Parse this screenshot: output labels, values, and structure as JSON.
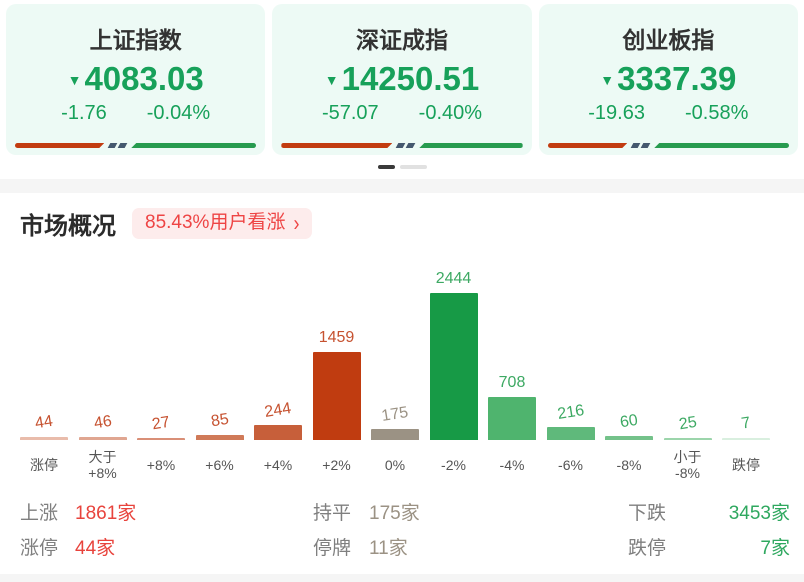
{
  "indices": {
    "down_arrow": "▼",
    "cards": [
      {
        "name": "上证指数",
        "value": "4083.03",
        "change": "-1.76",
        "change_pct": "-0.04%",
        "direction": "down",
        "up_ratio_pct": 37
      },
      {
        "name": "深证成指",
        "value": "14250.51",
        "change": "-57.07",
        "change_pct": "-0.40%",
        "direction": "down",
        "up_ratio_pct": 46
      },
      {
        "name": "创业板指",
        "value": "3337.39",
        "change": "-19.63",
        "change_pct": "-0.58%",
        "direction": "down",
        "up_ratio_pct": 33
      }
    ]
  },
  "carousel": {
    "active_page": 1,
    "total_pages": 2
  },
  "market_overview": {
    "title": "市场概况",
    "sentiment_badge": {
      "label": "85.43%用户看涨",
      "chevron": "›"
    }
  },
  "chart_data": {
    "type": "bar",
    "categories": [
      "涨停",
      "大于\n+8%",
      "+8%",
      "+6%",
      "+4%",
      "+2%",
      "0%",
      "-2%",
      "-4%",
      "-6%",
      "-8%",
      "小于\n-8%",
      "跌停"
    ],
    "values": [
      44,
      46,
      27,
      85,
      244,
      1459,
      175,
      2444,
      708,
      216,
      60,
      25,
      7
    ],
    "bar_colors": [
      "#e9bcab",
      "#e0a691",
      "#d98f77",
      "#d07a58",
      "#c75f3a",
      "#c03c10",
      "#9b9284",
      "#179a46",
      "#4fb46e",
      "#5fb97b",
      "#74c28a",
      "#9cd5ab",
      "#d9efdf"
    ],
    "label_colors": [
      "#c65230",
      "#c65230",
      "#c65230",
      "#c65230",
      "#c65230",
      "#c65230",
      "#9b9284",
      "#3da963",
      "#3da963",
      "#3da963",
      "#3da963",
      "#3da963",
      "#3da963"
    ],
    "ylim": [
      0,
      2444
    ],
    "grid": false,
    "legend": false
  },
  "summary": {
    "rows": [
      [
        {
          "label": "上涨",
          "value": "1861家",
          "tone": "red"
        },
        {
          "label": "持平",
          "value": "175家",
          "tone": "gray"
        },
        {
          "label": "下跌",
          "value": "3453家",
          "tone": "green"
        }
      ],
      [
        {
          "label": "涨停",
          "value": "44家",
          "tone": "red"
        },
        {
          "label": "停牌",
          "value": "11家",
          "tone": "gray"
        },
        {
          "label": "跌停",
          "value": "7家",
          "tone": "green"
        }
      ]
    ]
  },
  "colors": {
    "index_down_green": "#17a15a",
    "card_bg": "#edfaf5",
    "ratio_bar_red": "#c23c10",
    "ratio_bar_green": "#279b4f",
    "ratio_bar_slash": "#44586e",
    "badge_bg": "#fdecec",
    "badge_text": "#ee4444",
    "summary_red": "#e8433c",
    "summary_gray": "#9b9284",
    "summary_green": "#2fa85f"
  }
}
